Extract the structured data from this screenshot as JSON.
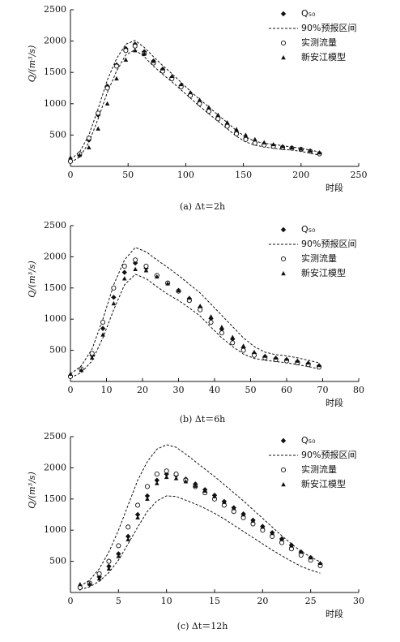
{
  "chart_data": [
    {
      "type": "line",
      "caption": "(a) Δt＝2h",
      "x_label": "时段",
      "y_label": "Q/(m³/s)",
      "xlim": [
        0,
        250
      ],
      "xticks": [
        0,
        50,
        100,
        150,
        200,
        250
      ],
      "ylim": [
        0,
        2500
      ],
      "yticks": [
        500,
        1000,
        1500,
        2000,
        2500
      ],
      "x": [
        0,
        8,
        16,
        24,
        32,
        40,
        48,
        56,
        64,
        72,
        80,
        88,
        96,
        104,
        112,
        120,
        128,
        136,
        144,
        152,
        160,
        168,
        176,
        184,
        192,
        200,
        208,
        216
      ],
      "series": [
        {
          "name": "Q₅₀",
          "marker": "diamond",
          "color": "#111",
          "values": [
            90,
            180,
            420,
            820,
            1280,
            1620,
            1880,
            1950,
            1830,
            1680,
            1550,
            1420,
            1290,
            1150,
            1020,
            900,
            780,
            660,
            540,
            450,
            380,
            350,
            330,
            310,
            295,
            275,
            245,
            210
          ]
        },
        {
          "name": "90%预报区间",
          "marker": "dashed",
          "color": "#111",
          "upper": [
            110,
            230,
            500,
            920,
            1380,
            1720,
            1950,
            2010,
            1900,
            1750,
            1610,
            1480,
            1340,
            1200,
            1070,
            950,
            820,
            700,
            570,
            470,
            400,
            370,
            350,
            330,
            310,
            290,
            260,
            230
          ],
          "lower": [
            60,
            150,
            380,
            760,
            1180,
            1520,
            1780,
            1860,
            1750,
            1600,
            1470,
            1350,
            1220,
            1090,
            960,
            840,
            720,
            600,
            480,
            390,
            340,
            310,
            290,
            270,
            260,
            240,
            210,
            180
          ]
        },
        {
          "name": "实测流量",
          "marker": "circle",
          "color": "#111",
          "values": [
            80,
            200,
            450,
            850,
            1250,
            1600,
            1850,
            1920,
            1800,
            1650,
            1520,
            1400,
            1270,
            1130,
            1000,
            880,
            760,
            640,
            520,
            430,
            370,
            340,
            320,
            300,
            290,
            270,
            240,
            200
          ]
        },
        {
          "name": "新安江模型",
          "marker": "triangle",
          "color": "#111",
          "values": [
            140,
            180,
            300,
            600,
            1000,
            1400,
            1700,
            1850,
            1800,
            1680,
            1560,
            1440,
            1310,
            1180,
            1060,
            940,
            820,
            700,
            590,
            500,
            430,
            380,
            350,
            320,
            300,
            280,
            250,
            220
          ]
        }
      ]
    },
    {
      "type": "line",
      "caption": "(b) Δt＝6h",
      "x_label": "时段",
      "y_label": "Q/(m³/s)",
      "xlim": [
        0,
        80
      ],
      "xticks": [
        0,
        10,
        20,
        30,
        40,
        50,
        60,
        70,
        80
      ],
      "ylim": [
        0,
        2500
      ],
      "yticks": [
        500,
        1000,
        1500,
        2000,
        2500
      ],
      "x": [
        0,
        3,
        6,
        9,
        12,
        15,
        18,
        21,
        24,
        27,
        30,
        33,
        36,
        39,
        42,
        45,
        48,
        51,
        54,
        57,
        60,
        63,
        66,
        69
      ],
      "series": [
        {
          "name": "Q₅₀",
          "marker": "diamond",
          "color": "#111",
          "values": [
            90,
            190,
            420,
            850,
            1350,
            1750,
            1900,
            1820,
            1700,
            1580,
            1460,
            1330,
            1190,
            1010,
            840,
            680,
            540,
            450,
            400,
            370,
            350,
            320,
            290,
            250
          ]
        },
        {
          "name": "90%预报区间",
          "marker": "dashed",
          "color": "#111",
          "upper": [
            120,
            250,
            520,
            1000,
            1550,
            1950,
            2150,
            2080,
            1950,
            1830,
            1700,
            1560,
            1420,
            1240,
            1060,
            880,
            700,
            560,
            470,
            430,
            410,
            380,
            340,
            300
          ],
          "lower": [
            60,
            140,
            330,
            700,
            1150,
            1550,
            1720,
            1650,
            1520,
            1400,
            1300,
            1180,
            1050,
            870,
            700,
            560,
            440,
            370,
            340,
            320,
            300,
            270,
            240,
            200
          ]
        },
        {
          "name": "实测流量",
          "marker": "circle",
          "color": "#111",
          "values": [
            80,
            200,
            450,
            950,
            1500,
            1850,
            1950,
            1850,
            1700,
            1580,
            1450,
            1300,
            1150,
            950,
            780,
            620,
            500,
            420,
            380,
            350,
            330,
            300,
            270,
            230
          ]
        },
        {
          "name": "新安江模型",
          "marker": "triangle",
          "color": "#111",
          "values": [
            120,
            180,
            380,
            750,
            1250,
            1650,
            1800,
            1780,
            1680,
            1570,
            1460,
            1340,
            1210,
            1040,
            870,
            710,
            570,
            470,
            410,
            380,
            360,
            330,
            300,
            260
          ]
        }
      ]
    },
    {
      "type": "line",
      "caption": "(c) Δt＝12h",
      "x_label": "时段",
      "y_label": "Q/(m³/s)",
      "xlim": [
        0,
        30
      ],
      "xticks": [
        0,
        5,
        10,
        15,
        20,
        25,
        30
      ],
      "ylim": [
        0,
        2500
      ],
      "yticks": [
        500,
        1000,
        1500,
        2000,
        2500
      ],
      "x": [
        1,
        2,
        3,
        4,
        5,
        6,
        7,
        8,
        9,
        10,
        11,
        12,
        13,
        14,
        15,
        16,
        17,
        18,
        19,
        20,
        21,
        22,
        23,
        24,
        25,
        26
      ],
      "series": [
        {
          "name": "Q₅₀",
          "marker": "diamond",
          "color": "#111",
          "values": [
            70,
            130,
            250,
            420,
            620,
            900,
            1250,
            1550,
            1800,
            1900,
            1880,
            1820,
            1740,
            1650,
            1560,
            1460,
            1360,
            1260,
            1160,
            1060,
            960,
            860,
            760,
            650,
            560,
            460
          ]
        },
        {
          "name": "90%预报区间",
          "marker": "dashed",
          "color": "#111",
          "upper": [
            100,
            200,
            380,
            650,
            1000,
            1400,
            1800,
            2100,
            2300,
            2370,
            2330,
            2220,
            2100,
            1980,
            1860,
            1730,
            1600,
            1470,
            1330,
            1190,
            1050,
            910,
            780,
            660,
            570,
            490
          ],
          "lower": [
            50,
            90,
            180,
            320,
            520,
            780,
            1050,
            1300,
            1470,
            1550,
            1540,
            1480,
            1420,
            1350,
            1270,
            1180,
            1080,
            980,
            880,
            780,
            680,
            590,
            500,
            420,
            360,
            310
          ]
        },
        {
          "name": "实测流量",
          "marker": "circle",
          "color": "#111",
          "values": [
            80,
            150,
            300,
            500,
            750,
            1050,
            1400,
            1700,
            1900,
            1950,
            1900,
            1800,
            1700,
            1600,
            1500,
            1400,
            1300,
            1200,
            1100,
            1000,
            900,
            800,
            700,
            600,
            520,
            430
          ]
        },
        {
          "name": "新安江模型",
          "marker": "triangle",
          "color": "#111",
          "values": [
            130,
            140,
            220,
            380,
            580,
            850,
            1200,
            1500,
            1750,
            1850,
            1830,
            1780,
            1710,
            1630,
            1540,
            1450,
            1350,
            1250,
            1150,
            1050,
            950,
            850,
            750,
            650,
            560,
            470
          ]
        }
      ]
    }
  ]
}
